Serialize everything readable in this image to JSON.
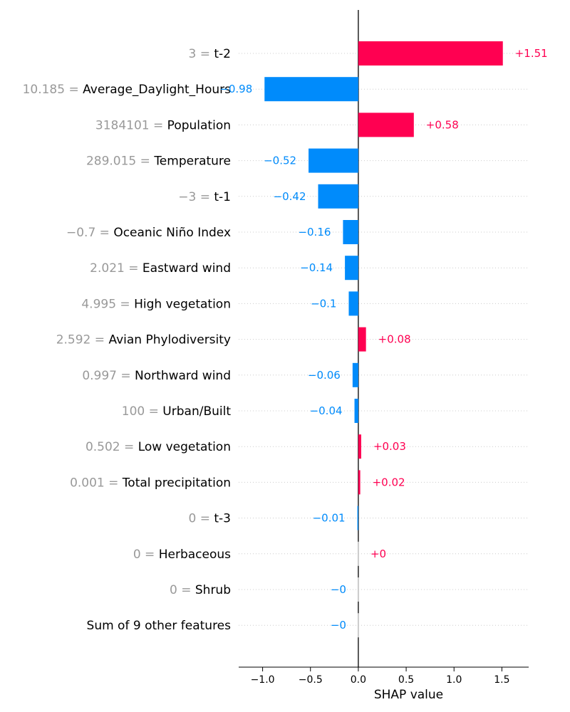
{
  "chart_data": {
    "type": "bar",
    "orientation": "horizontal",
    "xlabel": "SHAP value",
    "xlim": [
      -1.25,
      1.78
    ],
    "xticks": [
      -1.0,
      -0.5,
      0.0,
      0.5,
      1.0,
      1.5
    ],
    "xtick_labels": [
      "−1.0",
      "−0.5",
      "0.0",
      "0.5",
      "1.0",
      "1.5"
    ],
    "grid": "horizontal dotted",
    "colors": {
      "positive": "#ff0051",
      "negative": "#008bfb",
      "tiny": "#cccccc",
      "value_label": "#999999"
    },
    "features": [
      {
        "value": "3",
        "name": "t-2",
        "shap": 1.51,
        "label": "+1.51"
      },
      {
        "value": "10.185",
        "name": "Average_Daylight_Hours",
        "shap": -0.98,
        "label": "−0.98"
      },
      {
        "value": "3184101",
        "name": "Population",
        "shap": 0.58,
        "label": "+0.58"
      },
      {
        "value": "289.015",
        "name": "Temperature",
        "shap": -0.52,
        "label": "−0.52"
      },
      {
        "value": "−3",
        "name": "t-1",
        "shap": -0.42,
        "label": "−0.42"
      },
      {
        "value": "−0.7",
        "name": "Oceanic Niño Index",
        "shap": -0.16,
        "label": "−0.16"
      },
      {
        "value": "2.021",
        "name": "Eastward wind",
        "shap": -0.14,
        "label": "−0.14"
      },
      {
        "value": "4.995",
        "name": "High vegetation",
        "shap": -0.1,
        "label": "−0.1"
      },
      {
        "value": "2.592",
        "name": "Avian Phylodiversity",
        "shap": 0.08,
        "label": "+0.08"
      },
      {
        "value": "0.997",
        "name": "Northward wind",
        "shap": -0.06,
        "label": "−0.06"
      },
      {
        "value": "100",
        "name": "Urban/Built",
        "shap": -0.04,
        "label": "−0.04"
      },
      {
        "value": "0.502",
        "name": "Low vegetation",
        "shap": 0.03,
        "label": "+0.03"
      },
      {
        "value": "0.001",
        "name": "Total precipitation",
        "shap": 0.02,
        "label": "+0.02"
      },
      {
        "value": "0",
        "name": "t-3",
        "shap": -0.01,
        "label": "−0.01"
      },
      {
        "value": "0",
        "name": "Herbaceous",
        "shap": 0.0,
        "label": "+0"
      },
      {
        "value": "0",
        "name": "Shrub",
        "shap": -0.0,
        "label": "−0"
      },
      {
        "value": "",
        "name": "Sum of 9 other features",
        "shap": -0.0,
        "label": "−0"
      }
    ]
  }
}
